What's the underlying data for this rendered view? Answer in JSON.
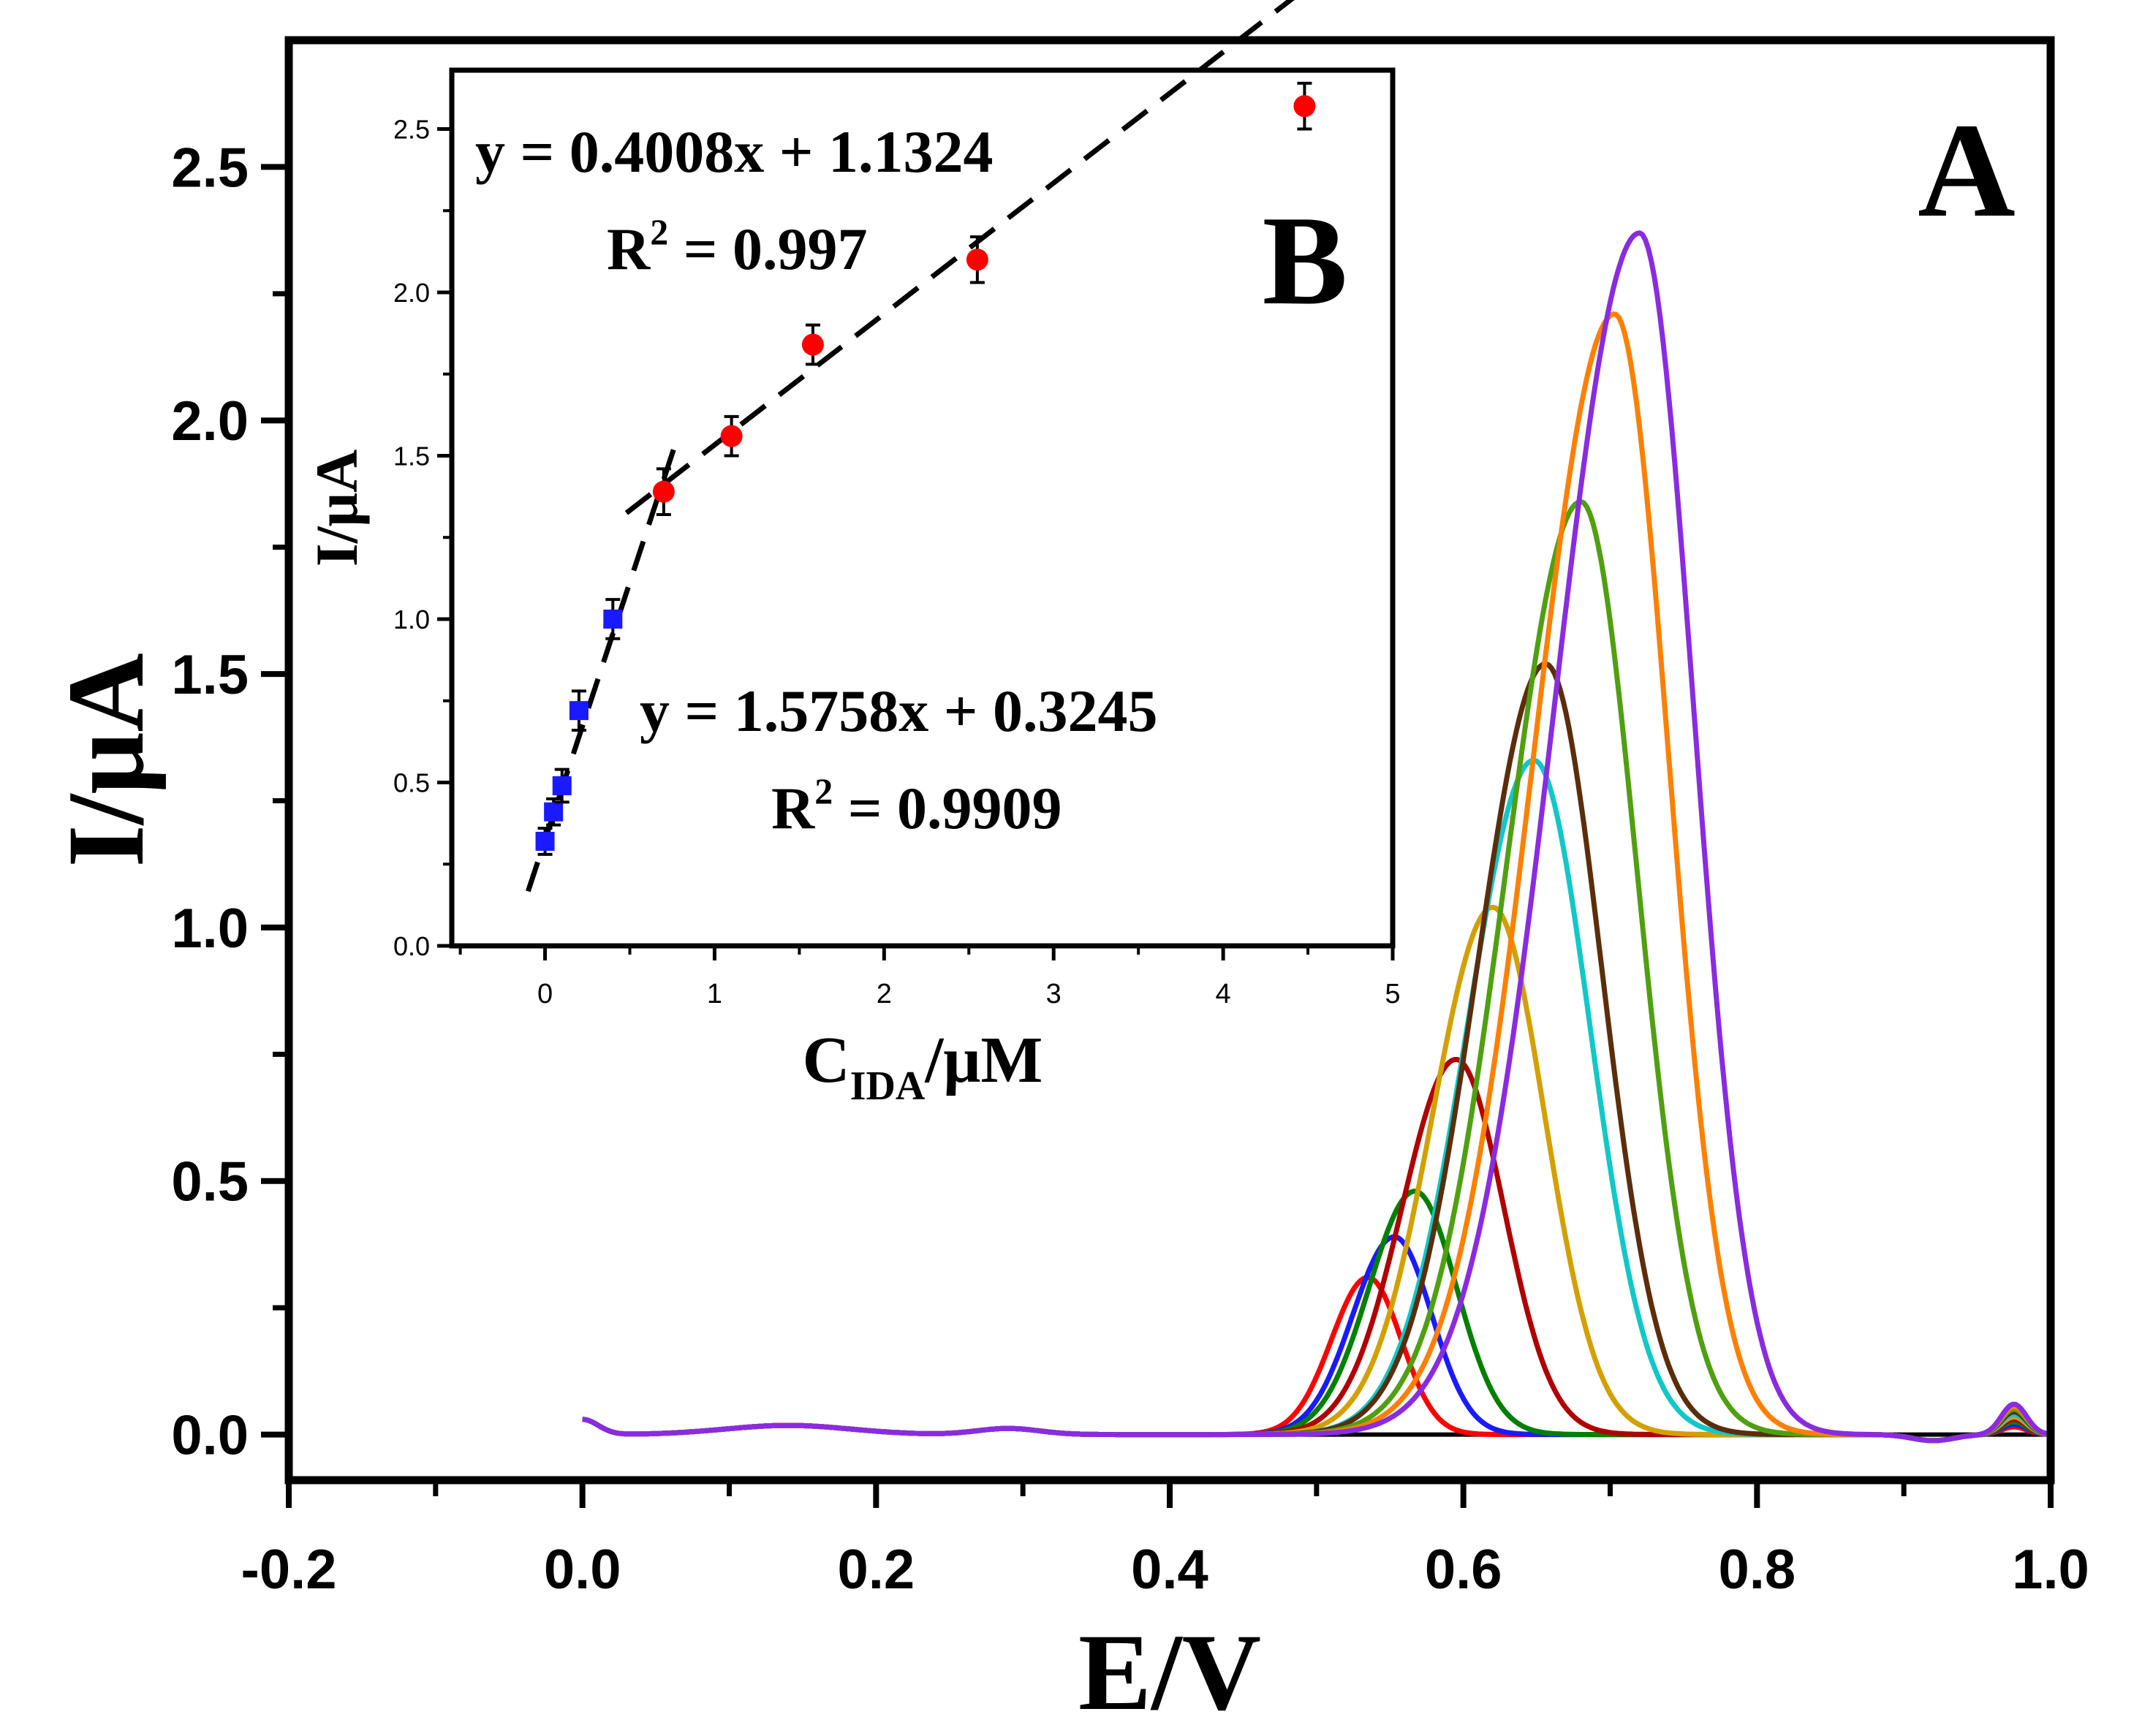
{
  "chart_data": [
    {
      "type": "line",
      "panel_label": "A",
      "xlabel": "E/V",
      "ylabel": "I/μA",
      "xlim": [
        -0.2,
        1.0
      ],
      "ylim": [
        -0.09,
        2.75
      ],
      "xticks": [
        -0.2,
        0.0,
        0.2,
        0.4,
        0.6,
        0.8,
        1.0
      ],
      "xtick_labels": [
        "-0.2",
        "0.0",
        "0.2",
        "0.4",
        "0.6",
        "0.8",
        "1.0"
      ],
      "yticks": [
        0.0,
        0.5,
        1.0,
        1.5,
        2.0,
        2.5
      ],
      "ytick_labels": [
        "0.0",
        "0.5",
        "1.0",
        "1.5",
        "2.0",
        "2.5"
      ],
      "grid": false,
      "baseline": {
        "color": "#000000",
        "x_start": 0.42,
        "x_end": 1.0,
        "y": 0.0
      },
      "series": [
        {
          "name": "red",
          "color": "#ff0000",
          "peak_x": 0.535,
          "peak_y": 0.31,
          "width_left": 0.035,
          "width_right": 0.032
        },
        {
          "name": "blue",
          "color": "#1a1aff",
          "peak_x": 0.553,
          "peak_y": 0.39,
          "width_left": 0.04,
          "width_right": 0.036
        },
        {
          "name": "green",
          "color": "#008000",
          "peak_x": 0.567,
          "peak_y": 0.48,
          "width_left": 0.044,
          "width_right": 0.04
        },
        {
          "name": "dark red",
          "color": "#b00000",
          "peak_x": 0.595,
          "peak_y": 0.74,
          "width_left": 0.052,
          "width_right": 0.046
        },
        {
          "name": "goldenrod",
          "color": "#d4a000",
          "peak_x": 0.62,
          "peak_y": 1.04,
          "width_left": 0.058,
          "width_right": 0.05
        },
        {
          "name": "cyan",
          "color": "#10c8c8",
          "peak_x": 0.648,
          "peak_y": 1.33,
          "width_left": 0.064,
          "width_right": 0.054
        },
        {
          "name": "brown",
          "color": "#5c2d0a",
          "peak_x": 0.656,
          "peak_y": 1.52,
          "width_left": 0.066,
          "width_right": 0.054
        },
        {
          "name": "olive green",
          "color": "#4fa010",
          "peak_x": 0.68,
          "peak_y": 1.84,
          "width_left": 0.072,
          "width_right": 0.054
        },
        {
          "name": "orange",
          "color": "#ff7f00",
          "peak_x": 0.703,
          "peak_y": 2.21,
          "width_left": 0.078,
          "width_right": 0.052
        },
        {
          "name": "purple",
          "color": "#8a2be2",
          "peak_x": 0.72,
          "peak_y": 2.37,
          "width_left": 0.082,
          "width_right": 0.052
        }
      ]
    },
    {
      "type": "scatter",
      "panel_label": "B",
      "xlabel_main": "C",
      "xlabel_sub": "IDA",
      "xlabel_rest": "/μM",
      "ylabel": "I/μA",
      "xlim": [
        -0.55,
        5.0
      ],
      "ylim": [
        0.0,
        2.68
      ],
      "xticks": [
        0,
        1,
        2,
        3,
        4,
        5
      ],
      "xtick_labels": [
        "0",
        "1",
        "2",
        "3",
        "4",
        "5"
      ],
      "yticks": [
        0.0,
        0.5,
        1.0,
        1.5,
        2.0,
        2.5
      ],
      "ytick_labels": [
        "0.0",
        "0.5",
        "1.0",
        "1.5",
        "2.0",
        "2.5"
      ],
      "series": [
        {
          "name": "low range",
          "color": "#1a1aff",
          "marker": "square",
          "x": [
            0.0,
            0.05,
            0.1,
            0.2,
            0.4
          ],
          "y": [
            0.32,
            0.41,
            0.49,
            0.72,
            1.0
          ],
          "err": [
            0.04,
            0.04,
            0.05,
            0.06,
            0.06
          ]
        },
        {
          "name": "high range",
          "color": "#ff0000",
          "marker": "circle",
          "x": [
            0.7,
            1.1,
            1.58,
            2.55,
            4.48
          ],
          "y": [
            1.39,
            1.56,
            1.84,
            2.1,
            2.57
          ],
          "err": [
            0.07,
            0.06,
            0.06,
            0.07,
            0.07
          ]
        }
      ],
      "fits": [
        {
          "slope": 1.5758,
          "intercept": 0.3245,
          "x_range": [
            -0.1,
            0.78
          ],
          "equation": "y = 1.5758x + 0.3245",
          "r2_label": "R",
          "r2_value": " = 0.9909"
        },
        {
          "slope": 0.4008,
          "intercept": 1.1324,
          "x_range": [
            0.48,
            4.48
          ],
          "equation": "y = 0.4008x + 1.1324",
          "r2_label": "R",
          "r2_value": " = 0.997"
        }
      ]
    }
  ]
}
